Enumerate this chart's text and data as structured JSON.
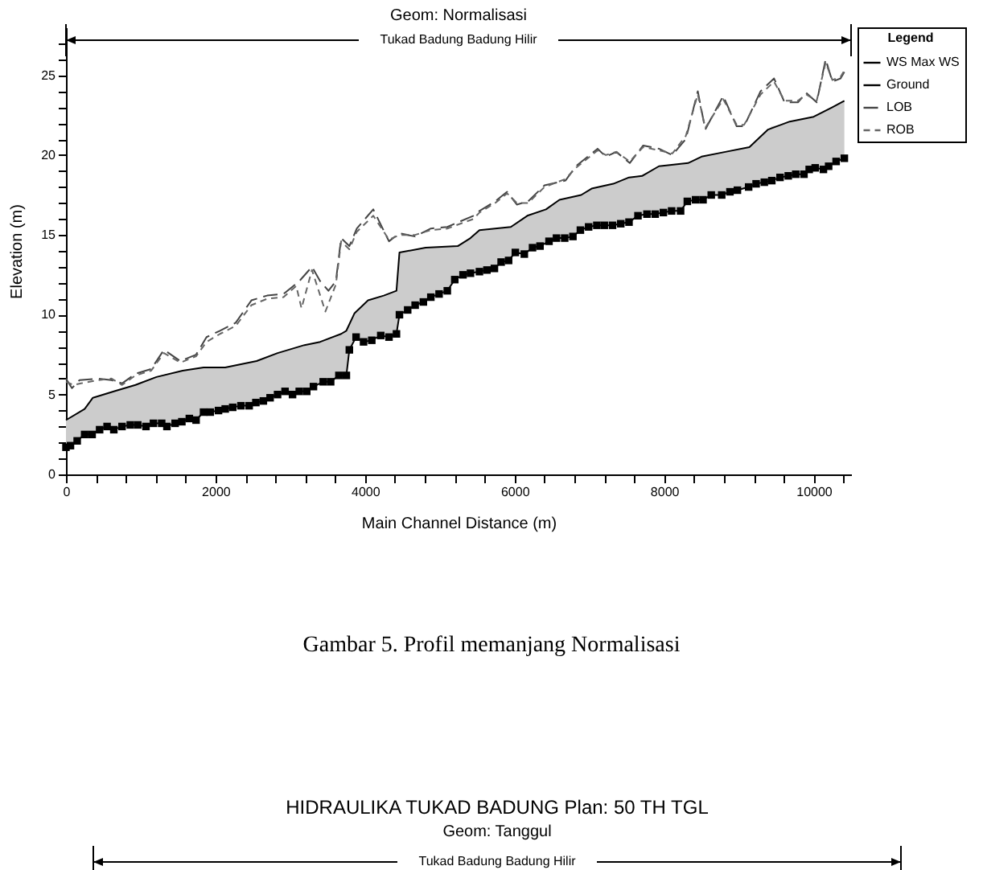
{
  "chart_data": [
    {
      "type": "line",
      "title": "Geom: Normalisasi",
      "xlabel": "Main Channel Distance (m)",
      "ylabel": "Elevation (m)",
      "legend_title": "Legend",
      "legend": "right",
      "xlim": [
        0,
        10500
      ],
      "ylim": [
        0,
        28
      ],
      "xticks": [
        0,
        {
          "value": 400,
          "label": null
        },
        {
          "value": 800,
          "label": null
        },
        {
          "value": 1200,
          "label": null
        },
        {
          "value": 1600,
          "label": null
        },
        2000,
        {
          "value": 2400,
          "label": null
        },
        {
          "value": 2800,
          "label": null
        },
        {
          "value": 3200,
          "label": null
        },
        {
          "value": 3600,
          "label": null
        },
        4000,
        {
          "value": 4400,
          "label": null
        },
        {
          "value": 4800,
          "label": null
        },
        {
          "value": 5200,
          "label": null
        },
        {
          "value": 5600,
          "label": null
        },
        6000,
        {
          "value": 6400,
          "label": null
        },
        {
          "value": 6800,
          "label": null
        },
        {
          "value": 7200,
          "label": null
        },
        {
          "value": 7600,
          "label": null
        },
        8000,
        {
          "value": 8400,
          "label": null
        },
        {
          "value": 8800,
          "label": null
        },
        {
          "value": 9200,
          "label": null
        },
        {
          "value": 9600,
          "label": null
        },
        10000,
        {
          "value": 10400,
          "label": null
        }
      ],
      "yticks": [
        0,
        {
          "value": 1,
          "label": null
        },
        {
          "value": 2,
          "label": null
        },
        {
          "value": 3,
          "label": null
        },
        {
          "value": 4,
          "label": null
        },
        5,
        {
          "value": 6,
          "label": null
        },
        {
          "value": 7,
          "label": null
        },
        {
          "value": 8,
          "label": null
        },
        {
          "value": 9,
          "label": null
        },
        10,
        {
          "value": 11,
          "label": null
        },
        {
          "value": 12,
          "label": null
        },
        {
          "value": 13,
          "label": null
        },
        {
          "value": 14,
          "label": null
        },
        15,
        {
          "value": 16,
          "label": null
        },
        {
          "value": 17,
          "label": null
        },
        {
          "value": 18,
          "label": null
        },
        {
          "value": 19,
          "label": null
        },
        20,
        {
          "value": 21,
          "label": null
        },
        {
          "value": 22,
          "label": null
        },
        {
          "value": 23,
          "label": null
        },
        {
          "value": 24,
          "label": null
        },
        25,
        {
          "value": 26,
          "label": null
        },
        {
          "value": 27,
          "label": null
        }
      ],
      "annotations": [
        "Tukad Badung Badung Hilir",
        "Gambar 5. Profil memanjang Normalisasi"
      ],
      "series": [
        {
          "name": "WS Max WS",
          "color": "#000000",
          "marker": "none",
          "line_style": "solid",
          "x": [
            0,
            250,
            360,
            640,
            930,
            1210,
            1560,
            1840,
            2130,
            2550,
            2830,
            3190,
            3400,
            3680,
            3750,
            3860,
            4040,
            4250,
            4420,
            4460,
            4810,
            5240,
            5410,
            5530,
            5950,
            6170,
            6420,
            6600,
            6890,
            7030,
            7320,
            7530,
            7710,
            7930,
            8320,
            8500,
            8820,
            9140,
            9390,
            9680,
            10000,
            10250,
            10410
          ],
          "values": [
            3.4,
            4.1,
            4.8,
            5.2,
            5.6,
            6.1,
            6.5,
            6.7,
            6.7,
            7.1,
            7.6,
            8.1,
            8.3,
            8.8,
            9.0,
            10.1,
            10.9,
            11.2,
            11.5,
            13.9,
            14.2,
            14.3,
            14.8,
            15.3,
            15.5,
            16.2,
            16.6,
            17.2,
            17.5,
            17.9,
            18.2,
            18.6,
            18.7,
            19.3,
            19.5,
            19.9,
            20.2,
            20.5,
            21.6,
            22.1,
            22.4,
            23.0,
            23.4
          ]
        },
        {
          "name": "Ground",
          "color": "#000000",
          "marker": "square",
          "line_style": "solid",
          "lower": [
            1.7,
            1.8,
            2.1,
            2.5,
            2.5,
            2.8,
            3.0,
            2.8,
            3.0,
            3.1,
            3.1,
            3.0,
            3.2,
            3.2,
            3.0,
            3.2,
            3.3,
            3.5,
            3.4,
            3.9,
            3.9,
            4.0,
            4.1,
            4.2,
            4.3,
            4.3,
            4.5,
            4.6,
            4.8,
            5.0,
            5.2,
            5.0,
            5.2,
            5.2,
            5.5,
            5.8,
            5.8,
            6.2,
            6.2,
            7.8,
            8.6,
            8.3,
            8.4,
            8.7,
            8.6,
            8.8,
            10.0,
            10.3,
            10.6,
            10.8,
            11.1,
            11.3,
            11.5,
            12.2,
            12.5,
            12.6,
            12.7,
            12.8,
            12.9,
            13.3,
            13.4,
            13.9,
            13.8,
            14.2,
            14.3,
            14.6,
            14.8,
            14.8,
            14.9,
            15.3,
            15.5,
            15.6,
            15.6,
            15.6,
            15.7,
            15.8,
            16.2,
            16.3,
            16.3,
            16.4,
            16.5,
            16.5,
            17.1,
            17.2,
            17.2,
            17.5,
            17.5,
            17.7,
            17.8,
            18.0,
            18.2,
            18.3,
            18.4,
            18.6,
            18.7,
            18.8,
            18.8,
            19.1,
            19.2,
            19.1,
            19.3,
            19.6,
            19.8
          ],
          "upper": [
            3.4,
            3.6,
            3.8,
            4.1,
            4.7,
            4.9,
            5.1,
            5.2,
            5.4,
            5.5,
            5.7,
            5.9,
            6.0,
            6.2,
            6.3,
            6.4,
            6.5,
            6.6,
            6.6,
            6.7,
            6.7,
            6.7,
            6.7,
            6.8,
            6.9,
            7.0,
            7.1,
            7.3,
            7.4,
            7.6,
            7.7,
            7.9,
            8.0,
            8.1,
            8.2,
            8.4,
            8.5,
            8.7,
            9.0,
            9.4,
            10.2,
            10.6,
            11.0,
            11.1,
            11.3,
            11.5,
            13.9,
            14.0,
            14.1,
            14.2,
            14.2,
            14.2,
            14.3,
            14.3,
            14.5,
            14.8,
            15.3,
            15.3,
            15.4,
            15.4,
            15.5,
            15.7,
            16.1,
            16.3,
            16.5,
            16.7,
            17.1,
            17.3,
            17.4,
            17.5,
            17.8,
            18.0,
            18.1,
            18.2,
            18.4,
            18.6,
            18.7,
            18.9,
            19.2,
            19.3,
            19.4,
            19.4,
            19.5,
            19.7,
            19.9,
            20.0,
            20.2,
            20.3,
            20.4,
            20.5,
            20.9,
            21.4,
            21.8,
            21.9,
            22.1,
            22.2,
            22.3,
            22.3,
            22.4,
            22.7,
            22.9,
            23.1,
            23.4
          ],
          "x": [
            0,
            60,
            150,
            250,
            350,
            450,
            550,
            640,
            750,
            860,
            960,
            1070,
            1170,
            1280,
            1350,
            1460,
            1550,
            1650,
            1740,
            1840,
            1930,
            2040,
            2130,
            2230,
            2340,
            2450,
            2540,
            2640,
            2730,
            2830,
            2930,
            3030,
            3120,
            3220,
            3310,
            3440,
            3540,
            3650,
            3750,
            3790,
            3880,
            3980,
            4090,
            4210,
            4320,
            4420,
            4460,
            4570,
            4670,
            4780,
            4880,
            4990,
            5100,
            5200,
            5310,
            5410,
            5530,
            5630,
            5730,
            5820,
            5920,
            6010,
            6130,
            6240,
            6340,
            6460,
            6560,
            6670,
            6780,
            6880,
            6990,
            7100,
            7200,
            7310,
            7420,
            7530,
            7650,
            7770,
            7880,
            7990,
            8100,
            8220,
            8310,
            8420,
            8520,
            8630,
            8770,
            8880,
            8980,
            9130,
            9230,
            9340,
            9440,
            9550,
            9660,
            9760,
            9870,
            9940,
            10020,
            10130,
            10200,
            10300,
            10410
          ],
          "values": [
            1.7,
            1.8,
            2.1,
            2.5,
            2.5,
            2.8,
            3.0,
            2.8,
            3.0,
            3.1,
            3.1,
            3.0,
            3.2,
            3.2,
            3.0,
            3.2,
            3.3,
            3.5,
            3.4,
            3.9,
            3.9,
            4.0,
            4.1,
            4.2,
            4.3,
            4.3,
            4.5,
            4.6,
            4.8,
            5.0,
            5.2,
            5.0,
            5.2,
            5.2,
            5.5,
            5.8,
            5.8,
            6.2,
            6.2,
            7.8,
            8.6,
            8.3,
            8.4,
            8.7,
            8.6,
            8.8,
            10.0,
            10.3,
            10.6,
            10.8,
            11.1,
            11.3,
            11.5,
            12.2,
            12.5,
            12.6,
            12.7,
            12.8,
            12.9,
            13.3,
            13.4,
            13.9,
            13.8,
            14.2,
            14.3,
            14.6,
            14.8,
            14.8,
            14.9,
            15.3,
            15.5,
            15.6,
            15.6,
            15.6,
            15.7,
            15.8,
            16.2,
            16.3,
            16.3,
            16.4,
            16.5,
            16.5,
            17.1,
            17.2,
            17.2,
            17.5,
            17.5,
            17.7,
            17.8,
            18.0,
            18.2,
            18.3,
            18.4,
            18.6,
            18.7,
            18.8,
            18.8,
            19.1,
            19.2,
            19.1,
            19.3,
            19.6,
            19.8
          ]
        },
        {
          "name": "LOB",
          "color": "#444444",
          "marker": "none",
          "line_style": "dashed",
          "x": [
            0,
            80,
            180,
            430,
            610,
            750,
            930,
            1140,
            1310,
            1530,
            1740,
            1880,
            2060,
            2270,
            2480,
            2690,
            2910,
            3120,
            3290,
            3400,
            3510,
            3610,
            3680,
            3790,
            3890,
            4110,
            4320,
            4460,
            4670,
            4880,
            5100,
            5450,
            5530,
            5740,
            5900,
            6030,
            6180,
            6400,
            6680,
            6820,
            7110,
            7220,
            7360,
            7540,
            7720,
            7930,
            8110,
            8290,
            8450,
            8550,
            8790,
            8970,
            9070,
            9290,
            9470,
            9610,
            9790,
            9900,
            10040,
            10160,
            10250,
            10360,
            10410
          ],
          "values": [
            6.0,
            5.4,
            5.9,
            6.0,
            5.9,
            5.7,
            6.3,
            6.6,
            7.8,
            7.1,
            7.5,
            8.6,
            9.0,
            9.5,
            10.9,
            11.2,
            11.3,
            12.1,
            13.0,
            12.1,
            11.5,
            12.1,
            14.8,
            14.3,
            15.4,
            16.6,
            14.6,
            15.1,
            14.9,
            15.4,
            15.5,
            16.2,
            16.5,
            17.1,
            17.7,
            16.9,
            17.1,
            18.1,
            18.4,
            19.3,
            20.4,
            19.9,
            20.2,
            19.5,
            20.6,
            20.4,
            20.0,
            21.0,
            24.0,
            21.6,
            23.7,
            21.8,
            21.8,
            24.0,
            24.8,
            23.3,
            23.3,
            23.9,
            23.3,
            26.0,
            24.6,
            24.8,
            25.2
          ]
        },
        {
          "name": "ROB",
          "color": "#666666",
          "marker": "none",
          "line_style": "dashed",
          "x": [
            0,
            100,
            200,
            430,
            610,
            750,
            930,
            1140,
            1310,
            1530,
            1740,
            1880,
            2060,
            2270,
            2480,
            2690,
            2910,
            3080,
            3150,
            3290,
            3470,
            3610,
            3680,
            3790,
            3890,
            4110,
            4320,
            4460,
            4670,
            4880,
            5100,
            5450,
            5530,
            5740,
            5900,
            6030,
            6180,
            6400,
            6680,
            6820,
            7110,
            7220,
            7360,
            7540,
            7720,
            7930,
            8110,
            8290,
            8450,
            8550,
            8790,
            8970,
            9070,
            9290,
            9470,
            9610,
            9790,
            9900,
            10040,
            10160,
            10250,
            10360,
            10410
          ],
          "values": [
            5.8,
            5.6,
            5.7,
            5.9,
            6.0,
            5.6,
            6.2,
            6.5,
            7.6,
            7.0,
            7.4,
            8.3,
            8.8,
            9.3,
            10.6,
            11.0,
            11.1,
            11.8,
            10.4,
            12.8,
            10.2,
            11.9,
            14.6,
            14.1,
            15.2,
            16.2,
            14.7,
            15.0,
            15.0,
            15.3,
            15.4,
            16.0,
            16.4,
            17.0,
            17.6,
            17.0,
            17.0,
            18.0,
            18.5,
            19.2,
            20.3,
            20.0,
            20.2,
            19.6,
            20.5,
            20.3,
            20.1,
            21.2,
            23.8,
            21.7,
            23.5,
            21.9,
            21.9,
            23.8,
            24.6,
            23.4,
            23.4,
            23.8,
            23.4,
            25.8,
            24.7,
            24.9,
            25.3
          ]
        }
      ]
    },
    {
      "type": "other",
      "title": "HIDRAULIKA TUKAD BADUNG  Plan: 50 TH TGL",
      "subtitle": "Geom: Tanggul",
      "annotations": [
        "Tukad Badung Badung Hilir"
      ]
    }
  ]
}
